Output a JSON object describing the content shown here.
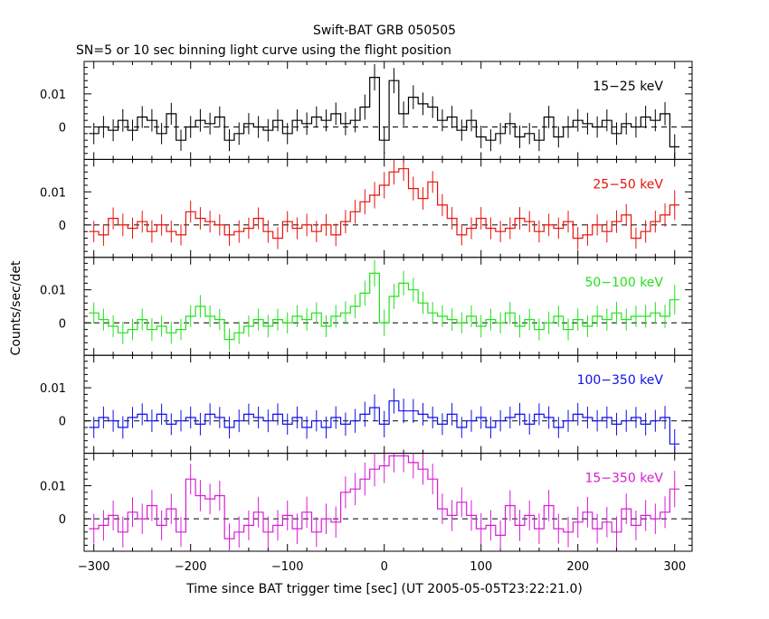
{
  "chart_data": {
    "type": "line",
    "title": "Swift-BAT GRB 050505",
    "subtitle": "SN=5 or 10 sec binning light curve using the flight position",
    "xlabel": "Time since BAT trigger time [sec] (UT 2005-05-05T23:22:21.0)",
    "ylabel": "Counts/sec/det",
    "xlim": [
      -310,
      318
    ],
    "xticks": [
      -300,
      -200,
      -100,
      0,
      100,
      200,
      300
    ],
    "xtick_labels": [
      "−300",
      "−200",
      "−100",
      "0",
      "100",
      "200",
      "300"
    ],
    "ylim": [
      -0.0098,
      0.0198
    ],
    "yticks": [
      0,
      0.01
    ],
    "ytick_labels": [
      "0",
      "0.01"
    ],
    "reference_line": 0,
    "bins": [
      -300,
      -290,
      -280,
      -270,
      -260,
      -250,
      -240,
      -230,
      -220,
      -210,
      -200,
      -190,
      -180,
      -170,
      -160,
      -150,
      -140,
      -130,
      -120,
      -110,
      -100,
      -90,
      -80,
      -70,
      -60,
      -50,
      -40,
      -30,
      -20,
      -10,
      0,
      10,
      20,
      30,
      40,
      50,
      60,
      70,
      80,
      90,
      100,
      110,
      120,
      130,
      140,
      150,
      160,
      170,
      180,
      190,
      200,
      210,
      220,
      230,
      240,
      250,
      260,
      270,
      280,
      290,
      300
    ],
    "series": [
      {
        "name": "15-25 keV",
        "label": "15−25 keV",
        "color": "#000000",
        "errors": [
          0.0032,
          0.0033,
          0.0033,
          0.0034,
          0.0032,
          0.0033,
          0.0034,
          0.0032,
          0.0033,
          0.0032,
          0.0033,
          0.0034,
          0.0033,
          0.0032,
          0.0033,
          0.0034,
          0.0032,
          0.0033,
          0.0034,
          0.0033,
          0.0032,
          0.0033,
          0.0034,
          0.0032,
          0.0033,
          0.0034,
          0.0035,
          0.0036,
          0.0038,
          0.004,
          0.004,
          0.0038,
          0.0037,
          0.0036,
          0.0034,
          0.0033,
          0.0033,
          0.0034,
          0.0032,
          0.0033,
          0.0034,
          0.0033,
          0.0032,
          0.0033,
          0.0034,
          0.0032,
          0.0033,
          0.0034,
          0.0032,
          0.0033,
          0.0034,
          0.0033,
          0.0032,
          0.0033,
          0.0034,
          0.0033,
          0.0032,
          0.0034,
          0.0033,
          0.0035,
          0.0038
        ],
        "values": [
          -0.002,
          0,
          -0.001,
          0.002,
          -0.001,
          0.003,
          0.002,
          -0.002,
          0.004,
          -0.004,
          0,
          0.002,
          0.001,
          0.003,
          -0.004,
          -0.002,
          0.001,
          0,
          -0.001,
          0.002,
          -0.002,
          0.002,
          0.001,
          0.003,
          0.002,
          0.004,
          0.001,
          0.002,
          0.006,
          0.015,
          -0.004,
          0.014,
          0.004,
          0.009,
          0.007,
          0.006,
          0.002,
          0.003,
          -0.001,
          0.002,
          -0.003,
          -0.004,
          -0.002,
          0.001,
          -0.003,
          -0.002,
          -0.004,
          0.003,
          -0.003,
          0,
          0.002,
          0.001,
          0,
          0.002,
          -0.002,
          0.001,
          0,
          0.003,
          0.002,
          0.004,
          -0.006
        ]
      },
      {
        "name": "25-50 keV",
        "label": "25−50 keV",
        "color": "#e8120c",
        "errors": [
          0.0032,
          0.0033,
          0.0033,
          0.0034,
          0.0032,
          0.0033,
          0.0034,
          0.0032,
          0.0033,
          0.0032,
          0.0033,
          0.0034,
          0.0033,
          0.0032,
          0.0033,
          0.0034,
          0.0032,
          0.0033,
          0.0034,
          0.0033,
          0.0032,
          0.0033,
          0.0034,
          0.0032,
          0.0033,
          0.0034,
          0.0035,
          0.0036,
          0.0038,
          0.004,
          0.004,
          0.0038,
          0.0037,
          0.0036,
          0.0034,
          0.0033,
          0.0033,
          0.0034,
          0.0032,
          0.0033,
          0.0034,
          0.0033,
          0.0032,
          0.0033,
          0.0034,
          0.0032,
          0.0033,
          0.0034,
          0.0032,
          0.0033,
          0.0034,
          0.0033,
          0.0032,
          0.0033,
          0.0034,
          0.0033,
          0.0032,
          0.0034,
          0.0033,
          0.0035,
          0.0045
        ],
        "values": [
          -0.002,
          -0.003,
          0.002,
          0,
          -0.001,
          0.001,
          -0.002,
          0,
          -0.002,
          -0.003,
          0.004,
          0.002,
          0.001,
          0,
          -0.003,
          -0.002,
          -0.001,
          0.002,
          -0.002,
          -0.004,
          0.001,
          -0.001,
          0,
          -0.002,
          0,
          -0.003,
          0.001,
          0.004,
          0.007,
          0.009,
          0.012,
          0.016,
          0.017,
          0.011,
          0.008,
          0.013,
          0.006,
          0.002,
          -0.003,
          -0.001,
          0.002,
          -0.001,
          -0.002,
          -0.001,
          0.002,
          0.001,
          -0.002,
          0,
          -0.001,
          0.001,
          -0.004,
          -0.003,
          0,
          -0.002,
          0.001,
          0.003,
          -0.004,
          -0.002,
          0.001,
          0.003,
          0.006
        ]
      },
      {
        "name": "50-100 keV",
        "label": "50−100 keV",
        "color": "#22e21c",
        "errors": [
          0.0032,
          0.0033,
          0.0033,
          0.0034,
          0.0032,
          0.0033,
          0.0034,
          0.0032,
          0.0033,
          0.0032,
          0.0033,
          0.0034,
          0.0033,
          0.0032,
          0.0033,
          0.0034,
          0.0032,
          0.0033,
          0.0034,
          0.0033,
          0.0032,
          0.0033,
          0.0034,
          0.0032,
          0.0033,
          0.0034,
          0.0035,
          0.0036,
          0.0038,
          0.004,
          0.004,
          0.0038,
          0.0037,
          0.0036,
          0.0034,
          0.0033,
          0.0033,
          0.0034,
          0.0032,
          0.0033,
          0.0034,
          0.0033,
          0.0032,
          0.0033,
          0.0034,
          0.0032,
          0.0033,
          0.0034,
          0.0032,
          0.0033,
          0.0034,
          0.0033,
          0.0032,
          0.0033,
          0.0034,
          0.0033,
          0.0032,
          0.0034,
          0.0033,
          0.0035,
          0.0045
        ],
        "values": [
          0.003,
          0.001,
          -0.001,
          -0.003,
          -0.002,
          0.001,
          -0.002,
          -0.001,
          -0.003,
          -0.002,
          0.002,
          0.005,
          0.002,
          0.001,
          -0.005,
          -0.003,
          -0.001,
          0.001,
          -0.001,
          0.001,
          0,
          0.002,
          0.001,
          0.003,
          -0.001,
          0.002,
          0.003,
          0.005,
          0.009,
          0.015,
          0,
          0.008,
          0.012,
          0.01,
          0.006,
          0.003,
          0.002,
          0.001,
          0,
          0.002,
          -0.001,
          0.001,
          0,
          0.003,
          -0.001,
          0.001,
          -0.002,
          0,
          0.002,
          -0.002,
          0.001,
          -0.001,
          0.002,
          0.001,
          0.003,
          0.001,
          0.002,
          0.002,
          0.003,
          0.002,
          0.007
        ]
      },
      {
        "name": "100-350 keV",
        "label": "100−350 keV",
        "color": "#1010e6",
        "errors": [
          0.0032,
          0.0033,
          0.0033,
          0.0034,
          0.0032,
          0.0033,
          0.0034,
          0.0032,
          0.0033,
          0.0032,
          0.0033,
          0.0034,
          0.0033,
          0.0032,
          0.0033,
          0.0034,
          0.0032,
          0.0033,
          0.0034,
          0.0033,
          0.0032,
          0.0033,
          0.0034,
          0.0032,
          0.0033,
          0.0034,
          0.0035,
          0.0036,
          0.0038,
          0.004,
          0.004,
          0.0038,
          0.0037,
          0.0036,
          0.0034,
          0.0033,
          0.0033,
          0.0034,
          0.0032,
          0.0033,
          0.0034,
          0.0033,
          0.0032,
          0.0033,
          0.0034,
          0.0032,
          0.0033,
          0.0034,
          0.0032,
          0.0033,
          0.0034,
          0.0033,
          0.0032,
          0.0033,
          0.0034,
          0.0033,
          0.0032,
          0.0034,
          0.0033,
          0.0035,
          0.0045
        ],
        "values": [
          -0.002,
          0.001,
          0,
          -0.002,
          0.001,
          0.002,
          0,
          0.002,
          -0.001,
          0,
          0.001,
          -0.001,
          0.002,
          0.001,
          -0.002,
          0,
          0.002,
          0.001,
          0,
          0.002,
          -0.001,
          0.001,
          -0.002,
          0,
          -0.002,
          0.001,
          -0.001,
          0,
          0.002,
          0.004,
          -0.001,
          0.006,
          0.003,
          0.003,
          0.002,
          0.001,
          -0.001,
          0.002,
          -0.002,
          0,
          0.001,
          -0.002,
          0,
          0.001,
          0.002,
          -0.001,
          0.002,
          0.001,
          -0.002,
          0,
          0.002,
          0.001,
          0,
          0.001,
          -0.001,
          0,
          0.001,
          -0.001,
          0,
          0.001,
          -0.007
        ]
      },
      {
        "name": "15-350 keV",
        "label": "15−350 keV",
        "color": "#d81bd4",
        "errors": [
          0.0045,
          0.0046,
          0.0045,
          0.0047,
          0.0045,
          0.0046,
          0.0047,
          0.0045,
          0.0046,
          0.0045,
          0.0046,
          0.0047,
          0.0046,
          0.0045,
          0.0046,
          0.0047,
          0.0045,
          0.0046,
          0.0047,
          0.0046,
          0.0045,
          0.0046,
          0.0047,
          0.0045,
          0.0046,
          0.0047,
          0.0048,
          0.0049,
          0.005,
          0.0052,
          0.0052,
          0.005,
          0.0049,
          0.0048,
          0.0047,
          0.0046,
          0.0046,
          0.0047,
          0.0045,
          0.0046,
          0.0047,
          0.0046,
          0.0045,
          0.0046,
          0.0047,
          0.0045,
          0.0046,
          0.0047,
          0.0045,
          0.0046,
          0.0047,
          0.0046,
          0.0045,
          0.0046,
          0.0047,
          0.0046,
          0.0045,
          0.0047,
          0.0046,
          0.0048,
          0.0055
        ],
        "values": [
          -0.003,
          -0.002,
          0.001,
          -0.004,
          0.002,
          0,
          0.004,
          -0.002,
          0.003,
          -0.004,
          0.012,
          0.007,
          0.006,
          0.007,
          -0.006,
          -0.004,
          -0.002,
          0.002,
          -0.004,
          -0.002,
          0.001,
          -0.003,
          0.002,
          -0.004,
          0,
          -0.001,
          0.008,
          0.009,
          0.012,
          0.015,
          0.016,
          0.019,
          0.019,
          0.017,
          0.015,
          0.012,
          0.003,
          0.001,
          0.005,
          0.001,
          -0.003,
          -0.002,
          -0.005,
          0.004,
          -0.002,
          0.001,
          -0.003,
          0.004,
          -0.003,
          -0.004,
          -0.001,
          0.002,
          -0.003,
          -0.001,
          -0.004,
          0.003,
          -0.002,
          0.001,
          0,
          0.002,
          0.009
        ]
      }
    ]
  }
}
